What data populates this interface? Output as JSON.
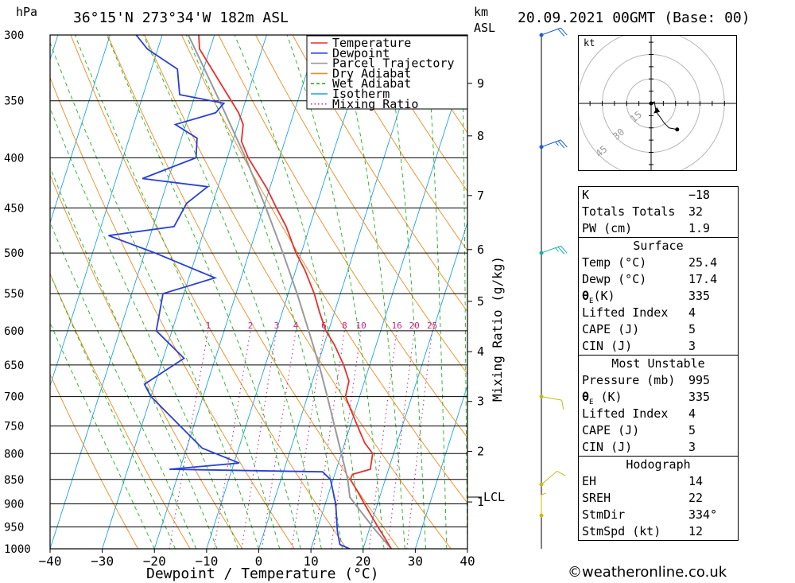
{
  "header": {
    "pressure_unit": "hPa",
    "location": "36°15'N  273°34'W  182m  ASL",
    "height_unit_1": "km",
    "height_unit_2": "ASL",
    "datetime": "20.09.2021  00GMT  (Base: 00)"
  },
  "chart_data": {
    "type": "skew-t",
    "xlabel": "Dewpoint / Temperature (°C)",
    "ylabel_left": "hPa",
    "ylabel_right": "Mixing Ratio (g/kg)",
    "x_ticks": [
      -40,
      -30,
      -20,
      -10,
      0,
      10,
      20,
      30,
      40
    ],
    "x_tick_labels": [
      "−40",
      "−30",
      "−20",
      "−10",
      "0",
      "10",
      "20",
      "30",
      "40"
    ],
    "pressure_levels": [
      300,
      350,
      400,
      450,
      500,
      550,
      600,
      650,
      700,
      750,
      800,
      850,
      900,
      950,
      1000
    ],
    "pressure_range": [
      1000,
      300
    ],
    "height_km_ticks": [
      {
        "label": "9",
        "p": 336
      },
      {
        "label": "8",
        "p": 380
      },
      {
        "label": "7",
        "p": 437
      },
      {
        "label": "6",
        "p": 496
      },
      {
        "label": "5",
        "p": 560
      },
      {
        "label": "4",
        "p": 630
      },
      {
        "label": "3",
        "p": 708
      },
      {
        "label": "2",
        "p": 796
      },
      {
        "label": "1",
        "p": 896
      }
    ],
    "lcl": {
      "label": "LCL",
      "p": 886
    },
    "mixing_ratio_labels": [
      "1",
      "2",
      "3",
      "4",
      "6",
      "8",
      "10",
      "16",
      "20",
      "25"
    ],
    "legend": [
      {
        "name": "Temperature",
        "color": "#e8302a",
        "style": "solid"
      },
      {
        "name": "Dewpoint",
        "color": "#2a3fd6",
        "style": "solid"
      },
      {
        "name": "Parcel Trajectory",
        "color": "#9a9a9a",
        "style": "solid"
      },
      {
        "name": "Dry Adiabat",
        "color": "#ee8a1e",
        "style": "solid"
      },
      {
        "name": "Wet Adiabat",
        "color": "#1fb31f",
        "style": "dashed"
      },
      {
        "name": "Isotherm",
        "color": "#1ea6dc",
        "style": "solid"
      },
      {
        "name": "Mixing Ratio",
        "color": "#c0268a",
        "style": "dotted"
      }
    ],
    "temperature": [
      {
        "p": 1000,
        "t": 25.4
      },
      {
        "p": 975,
        "t": 23.5
      },
      {
        "p": 950,
        "t": 21.5
      },
      {
        "p": 925,
        "t": 19.5
      },
      {
        "p": 900,
        "t": 17.5
      },
      {
        "p": 875,
        "t": 15.5
      },
      {
        "p": 850,
        "t": 13.3
      },
      {
        "p": 840,
        "t": 13.4
      },
      {
        "p": 830,
        "t": 16.5
      },
      {
        "p": 800,
        "t": 16.0
      },
      {
        "p": 780,
        "t": 13.8
      },
      {
        "p": 750,
        "t": 11.4
      },
      {
        "p": 700,
        "t": 7.3
      },
      {
        "p": 675,
        "t": 7.0
      },
      {
        "p": 650,
        "t": 5.0
      },
      {
        "p": 620,
        "t": 2.0
      },
      {
        "p": 600,
        "t": -0.5
      },
      {
        "p": 575,
        "t": -2.8
      },
      {
        "p": 550,
        "t": -5.0
      },
      {
        "p": 520,
        "t": -8.3
      },
      {
        "p": 500,
        "t": -11.0
      },
      {
        "p": 470,
        "t": -14.5
      },
      {
        "p": 450,
        "t": -17.5
      },
      {
        "p": 430,
        "t": -20.5
      },
      {
        "p": 400,
        "t": -26.0
      },
      {
        "p": 385,
        "t": -28.3
      },
      {
        "p": 370,
        "t": -29.0
      },
      {
        "p": 360,
        "t": -30.6
      },
      {
        "p": 310,
        "t": -42.0
      },
      {
        "p": 300,
        "t": -43.0
      }
    ],
    "dewpoint": [
      {
        "p": 1000,
        "t": 17.4
      },
      {
        "p": 990,
        "t": 15.3
      },
      {
        "p": 960,
        "t": 14.0
      },
      {
        "p": 900,
        "t": 12.0
      },
      {
        "p": 850,
        "t": 9.5
      },
      {
        "p": 835,
        "t": 7.5
      },
      {
        "p": 830,
        "t": -22.0
      },
      {
        "p": 818,
        "t": -9.0
      },
      {
        "p": 790,
        "t": -17.0
      },
      {
        "p": 700,
        "t": -30.0
      },
      {
        "p": 680,
        "t": -32.0
      },
      {
        "p": 640,
        "t": -26.0
      },
      {
        "p": 600,
        "t": -33.0
      },
      {
        "p": 550,
        "t": -34.0
      },
      {
        "p": 530,
        "t": -25.0
      },
      {
        "p": 500,
        "t": -38.0
      },
      {
        "p": 480,
        "t": -48.0
      },
      {
        "p": 470,
        "t": -36.0
      },
      {
        "p": 445,
        "t": -35.0
      },
      {
        "p": 428,
        "t": -32.0
      },
      {
        "p": 420,
        "t": -45.0
      },
      {
        "p": 400,
        "t": -36.0
      },
      {
        "p": 382,
        "t": -37.0
      },
      {
        "p": 370,
        "t": -42.0
      },
      {
        "p": 360,
        "t": -35.0
      },
      {
        "p": 352,
        "t": -34.0
      },
      {
        "p": 345,
        "t": -43.0
      },
      {
        "p": 325,
        "t": -45.0
      },
      {
        "p": 310,
        "t": -52.0
      },
      {
        "p": 300,
        "t": -55.0
      }
    ],
    "parcel": [
      {
        "p": 1000,
        "t": 25.4
      },
      {
        "p": 950,
        "t": 20.5
      },
      {
        "p": 886,
        "t": 14.3
      },
      {
        "p": 850,
        "t": 12.8
      },
      {
        "p": 800,
        "t": 10.0
      },
      {
        "p": 750,
        "t": 7.0
      },
      {
        "p": 700,
        "t": 3.8
      },
      {
        "p": 650,
        "t": 0.3
      },
      {
        "p": 600,
        "t": -3.8
      },
      {
        "p": 550,
        "t": -8.3
      },
      {
        "p": 500,
        "t": -13.5
      },
      {
        "p": 450,
        "t": -19.5
      },
      {
        "p": 400,
        "t": -26.5
      },
      {
        "p": 350,
        "t": -35.0
      },
      {
        "p": 300,
        "t": -45.0
      }
    ],
    "wind_profile": [
      {
        "p": 300,
        "dir": 250,
        "kt": 20
      },
      {
        "p": 390,
        "dir": 250,
        "kt": 25
      },
      {
        "p": 500,
        "dir": 250,
        "kt": 25
      },
      {
        "p": 700,
        "dir": 280,
        "kt": 10
      },
      {
        "p": 860,
        "dir": 230,
        "kt": 10
      },
      {
        "p": 925,
        "dir": 180,
        "kt": 5
      }
    ],
    "hodograph": {
      "unit": "kt",
      "ring_labels": [
        "15",
        "30",
        "45"
      ],
      "trace_uv_kt": [
        [
          0,
          0
        ],
        [
          2,
          1
        ],
        [
          3,
          -5
        ],
        [
          6,
          -9
        ],
        [
          8,
          -12
        ],
        [
          11,
          -15
        ],
        [
          16,
          -16
        ]
      ],
      "storm_motion_uv_kt": [
        2.5,
        -3.7
      ]
    }
  },
  "indices": {
    "k_label": "K",
    "k_value": "−18",
    "tt_label": "Totals Totals",
    "tt_value": "32",
    "pw_label": "PW (cm)",
    "pw_value": "1.9"
  },
  "surface": {
    "title": "Surface",
    "temp_label": "Temp (°C)",
    "temp_value": "25.4",
    "dewp_label": "Dewp (°C)",
    "dewp_value": "17.4",
    "theta_label": "θ",
    "theta_sub": "E",
    "theta_unit": "(K)",
    "theta_value": "335",
    "li_label": "Lifted Index",
    "li_value": "4",
    "cape_label": "CAPE (J)",
    "cape_value": "5",
    "cin_label": "CIN (J)",
    "cin_value": "3"
  },
  "most_unstable": {
    "title": "Most Unstable",
    "pressure_label": "Pressure (mb)",
    "pressure_value": "995",
    "theta_label": "θ",
    "theta_sub": "E",
    "theta_unit": " (K)",
    "theta_value": "335",
    "li_label": "Lifted Index",
    "li_value": "4",
    "cape_label": "CAPE (J)",
    "cape_value": "5",
    "cin_label": "CIN (J)",
    "cin_value": "3"
  },
  "hodograph_table": {
    "title": "Hodograph",
    "eh_label": "EH",
    "eh_value": "14",
    "sreh_label": "SREH",
    "sreh_value": "22",
    "stmdir_label": "StmDir",
    "stmdir_value": "334°",
    "stmspd_label": "StmSpd (kt)",
    "stmspd_value": "12"
  },
  "footer": {
    "credit": "©weatheronline.co.uk"
  }
}
